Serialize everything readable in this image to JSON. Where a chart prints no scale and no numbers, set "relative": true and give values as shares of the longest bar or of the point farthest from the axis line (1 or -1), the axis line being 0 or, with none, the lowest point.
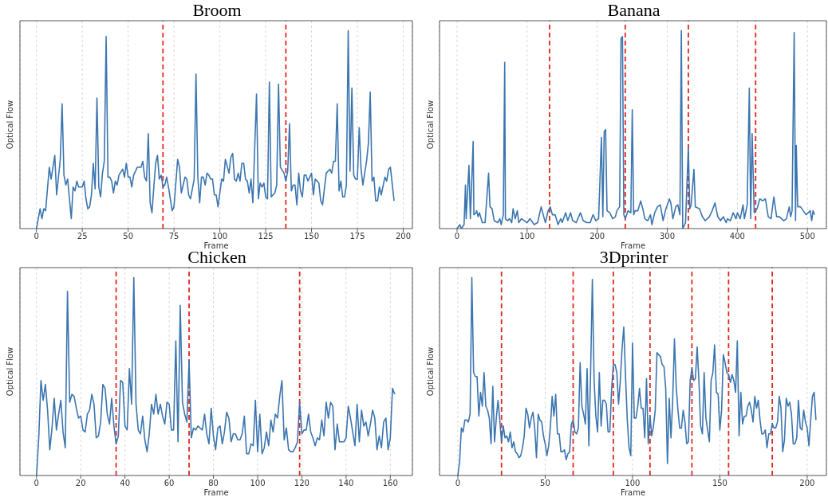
{
  "chart_data": [
    {
      "type": "line",
      "title": "Broom",
      "xlabel": "Frame",
      "ylabel": "Optical Flow",
      "relative": true,
      "xlim": [
        -9,
        205
      ],
      "xticks": [
        0,
        25,
        50,
        75,
        100,
        125,
        150,
        175,
        200
      ],
      "grid": "x",
      "marker": "none",
      "line_style": "solid",
      "ref_lines": [
        {
          "axis": "x",
          "value": 69,
          "color": "#e5261f",
          "line_style": "dashed"
        },
        {
          "axis": "x",
          "value": 136,
          "color": "#e5261f",
          "line_style": "dashed"
        }
      ],
      "series": [
        {
          "color": "#3b75af",
          "x": [
            0,
            2,
            3,
            4,
            5,
            7,
            8,
            10,
            11,
            13,
            14,
            15,
            16,
            17,
            19,
            20,
            21,
            22,
            23,
            25,
            26,
            27,
            28,
            29,
            30,
            31,
            32,
            33,
            34,
            35,
            36,
            37,
            38,
            39,
            40,
            41,
            42,
            43,
            44,
            45,
            47,
            48,
            49,
            50,
            51,
            52,
            53,
            55,
            57,
            58,
            59,
            60,
            61,
            62,
            63,
            64,
            65,
            66,
            67,
            68,
            69,
            70,
            71,
            72,
            74,
            75,
            77,
            78,
            79,
            81,
            82,
            83,
            84,
            86,
            87,
            88,
            89,
            90,
            91,
            92,
            93,
            94,
            95,
            96,
            97,
            98,
            99,
            101,
            102,
            103,
            105,
            106,
            107,
            108,
            109,
            110,
            111,
            112,
            113,
            114,
            115,
            116,
            117,
            118,
            120,
            121,
            122,
            123,
            124,
            125,
            126,
            127,
            128,
            129,
            130,
            131,
            132,
            133,
            135,
            136,
            137,
            138,
            139,
            140,
            141,
            142,
            143,
            144,
            145,
            146,
            147,
            148,
            150,
            151,
            152,
            154,
            155,
            156,
            158,
            160,
            161,
            162,
            163,
            164,
            165,
            166,
            167,
            168,
            169,
            170,
            171,
            172,
            173,
            174,
            175,
            176,
            177,
            178,
            180,
            181,
            182,
            183,
            184,
            185,
            186,
            187,
            188,
            190,
            191,
            192,
            193,
            195
          ],
          "values": [
            0,
            0.1,
            0.05,
            0.1,
            0.09,
            0.31,
            0.25,
            0.37,
            0.17,
            0.35,
            0.63,
            0.27,
            0.22,
            0.25,
            0.05,
            0.21,
            0.19,
            0.24,
            0.21,
            0.21,
            0.24,
            0.15,
            0.1,
            0.11,
            0.17,
            0.33,
            0.2,
            0.66,
            0.21,
            0.16,
            0.28,
            0.34,
            0.97,
            0.26,
            0.26,
            0.24,
            0.18,
            0.24,
            0.22,
            0.27,
            0.3,
            0.26,
            0.33,
            0.26,
            0.26,
            0.21,
            0.27,
            0.31,
            0.31,
            0.34,
            0.26,
            0.24,
            0.48,
            0.13,
            0.08,
            0.21,
            0.33,
            0.37,
            0.25,
            0.27,
            0.21,
            0.22,
            0.26,
            0.21,
            0.09,
            0.11,
            0.35,
            0.31,
            0.18,
            0.26,
            0.25,
            0.17,
            0.15,
            0.25,
            0.78,
            0.26,
            0.13,
            0.26,
            0.26,
            0.22,
            0.28,
            0.27,
            0.25,
            0.25,
            0.17,
            0.17,
            0.11,
            0.25,
            0.24,
            0.35,
            0.28,
            0.36,
            0.38,
            0.25,
            0.24,
            0.28,
            0.24,
            0.33,
            0.33,
            0.25,
            0.24,
            0.18,
            0.25,
            0.13,
            0.68,
            0.15,
            0.23,
            0.21,
            0.23,
            0.16,
            0.15,
            0.74,
            0.16,
            0.17,
            0.18,
            0.22,
            0.73,
            0.31,
            0.28,
            0.24,
            0.29,
            0.53,
            0.19,
            0.22,
            0.22,
            0.12,
            0.28,
            0.19,
            0.16,
            0.27,
            0.27,
            0.24,
            0.28,
            0.17,
            0.25,
            0.23,
            0.14,
            0.12,
            0.28,
            0.3,
            0.28,
            0.34,
            0.34,
            0.63,
            0.19,
            0.24,
            0.16,
            0.16,
            0.22,
            1,
            0.29,
            0.71,
            0.27,
            0.25,
            0.25,
            0.51,
            0.3,
            0.22,
            0.34,
            0.43,
            0.69,
            0.24,
            0.26,
            0.14,
            0.14,
            0.21,
            0.17,
            0.26,
            0.24,
            0.3,
            0.31,
            0.14
          ]
        }
      ]
    },
    {
      "type": "line",
      "title": "Banana",
      "xlabel": "Frame",
      "ylabel": "Optical Flow",
      "relative": true,
      "xlim": [
        -25,
        527
      ],
      "xticks": [
        0,
        100,
        200,
        300,
        400,
        500
      ],
      "grid": "x",
      "marker": "none",
      "line_style": "solid",
      "ref_lines": [
        {
          "axis": "x",
          "value": 132,
          "color": "#e5261f",
          "line_style": "dashed"
        },
        {
          "axis": "x",
          "value": 240,
          "color": "#e5261f",
          "line_style": "dashed"
        },
        {
          "axis": "x",
          "value": 330,
          "color": "#e5261f",
          "line_style": "dashed"
        },
        {
          "axis": "x",
          "value": 426,
          "color": "#e5261f",
          "line_style": "dashed"
        }
      ],
      "series": [
        {
          "color": "#3b75af",
          "x": [
            0,
            4,
            6,
            10,
            12,
            13,
            17,
            19,
            23,
            24,
            27,
            28,
            30,
            32,
            36,
            40,
            45,
            47,
            50,
            53,
            58,
            61,
            63,
            66,
            68,
            69,
            72,
            75,
            78,
            80,
            83,
            86,
            88,
            92,
            96,
            100,
            104,
            110,
            115,
            120,
            123,
            126,
            128,
            130,
            133,
            136,
            140,
            144,
            148,
            150,
            155,
            158,
            162,
            165,
            170,
            176,
            180,
            185,
            190,
            194,
            198,
            202,
            206,
            208,
            210,
            212,
            214,
            218,
            222,
            226,
            228,
            232,
            234,
            236,
            238,
            240,
            244,
            248,
            250,
            252,
            254,
            258,
            262,
            265,
            268,
            272,
            276,
            278,
            282,
            286,
            290,
            294,
            298,
            303,
            305,
            308,
            312,
            315,
            318,
            320,
            322,
            326,
            328,
            330,
            332,
            334,
            338,
            340,
            346,
            350,
            354,
            360,
            364,
            368,
            372,
            376,
            380,
            384,
            386,
            390,
            394,
            398,
            400,
            404,
            408,
            410,
            414,
            417,
            419,
            421,
            424,
            428,
            432,
            436,
            440,
            444,
            448,
            452,
            456,
            460,
            466,
            470,
            474,
            476,
            478,
            481,
            483,
            484,
            486,
            490,
            494,
            498,
            504,
            506,
            508,
            510
          ],
          "values": [
            0,
            0.02,
            0,
            0.02,
            0.22,
            0.05,
            0.32,
            0.05,
            0.44,
            0.07,
            0.08,
            0.09,
            0.06,
            0.08,
            0.03,
            0.03,
            0.28,
            0.11,
            0.1,
            0.04,
            0.03,
            0.05,
            0.02,
            0.07,
            0.84,
            0.05,
            0.04,
            0.05,
            0.03,
            0.1,
            0.05,
            0.09,
            0.03,
            0.05,
            0.04,
            0.03,
            0.05,
            0.02,
            0.03,
            0.11,
            0.07,
            0.03,
            0.06,
            0.09,
            0.11,
            0.07,
            0.07,
            0.02,
            0.05,
            0.03,
            0.08,
            0.04,
            0.08,
            0.04,
            0.03,
            0.08,
            0.04,
            0.03,
            0.03,
            0.07,
            0.04,
            0.05,
            0.46,
            0.06,
            0.49,
            0.5,
            0.09,
            0.08,
            0.05,
            0.06,
            0.09,
            0.11,
            0.96,
            0.97,
            0.07,
            0.05,
            0.09,
            0.08,
            0.6,
            0.07,
            0.09,
            0.09,
            0.14,
            0.1,
            0.05,
            0.04,
            0.07,
            0.02,
            0.08,
            0.11,
            0.12,
            0.04,
            0.1,
            0.15,
            0.13,
            0.05,
            0.11,
            0.12,
            0.07,
            1,
            0,
            0.03,
            0.22,
            0.41,
            0.1,
            0.12,
            0.3,
            0.11,
            0.1,
            0.06,
            0.04,
            0.06,
            0.09,
            0.13,
            0.06,
            0.04,
            0.06,
            0.03,
            0.05,
            0.04,
            0.08,
            0.05,
            0.08,
            0.05,
            0.12,
            0.05,
            0.12,
            0.71,
            0.05,
            0.48,
            0.08,
            0.1,
            0.15,
            0.14,
            0.15,
            0.06,
            0.05,
            0.16,
            0.06,
            0.06,
            0.04,
            0.05,
            0.11,
            0.06,
            0.09,
            0.99,
            0.04,
            0.42,
            0.11,
            0.11,
            0.09,
            0.07,
            0.09,
            0.04,
            0.09,
            0.07
          ]
        }
      ]
    },
    {
      "type": "line",
      "title": "Chicken",
      "xlabel": "Frame",
      "ylabel": "Optical Flow",
      "relative": true,
      "xlim": [
        -7.5,
        170
      ],
      "xticks": [
        0,
        20,
        40,
        60,
        80,
        100,
        120,
        140,
        160
      ],
      "grid": "x",
      "marker": "none",
      "line_style": "solid",
      "ref_lines": [
        {
          "axis": "x",
          "value": 36,
          "color": "#e5261f",
          "line_style": "dashed"
        },
        {
          "axis": "x",
          "value": 69,
          "color": "#e5261f",
          "line_style": "dashed"
        },
        {
          "axis": "x",
          "value": 119,
          "color": "#e5261f",
          "line_style": "dashed"
        }
      ],
      "series": [
        {
          "color": "#3b75af",
          "x": [
            0,
            1,
            2,
            3,
            4,
            5,
            6,
            7,
            8,
            9,
            10,
            11,
            12,
            13,
            14,
            15,
            16,
            17,
            18,
            19,
            20,
            21,
            22,
            23,
            24,
            25,
            26,
            27,
            28,
            29,
            30,
            31,
            32,
            33,
            34,
            35,
            36,
            37,
            38,
            39,
            40,
            41,
            42,
            43,
            44,
            45,
            46,
            47,
            48,
            49,
            50,
            51,
            52,
            53,
            54,
            55,
            56,
            57,
            58,
            59,
            60,
            61,
            62,
            63,
            64,
            65,
            66,
            67,
            68,
            69,
            70,
            71,
            72,
            73,
            74,
            75,
            76,
            77,
            78,
            79,
            80,
            81,
            82,
            83,
            84,
            85,
            86,
            87,
            88,
            89,
            90,
            91,
            92,
            93,
            94,
            95,
            96,
            97,
            98,
            99,
            100,
            101,
            102,
            103,
            104,
            105,
            106,
            107,
            108,
            109,
            110,
            111,
            112,
            113,
            114,
            115,
            116,
            117,
            118,
            119,
            120,
            121,
            122,
            123,
            124,
            125,
            126,
            127,
            128,
            129,
            130,
            131,
            132,
            133,
            134,
            135,
            136,
            137,
            138,
            139,
            140,
            141,
            142,
            143,
            144,
            145,
            146,
            147,
            148,
            149,
            150,
            151,
            152,
            153,
            154,
            155,
            156,
            157,
            158,
            159,
            160,
            161,
            162
          ],
          "values": [
            0,
            0.19,
            0.48,
            0.38,
            0.46,
            0.33,
            0.13,
            0.24,
            0.39,
            0.23,
            0.31,
            0.38,
            0.22,
            0.14,
            0.93,
            0.37,
            0.41,
            0.4,
            0.34,
            0.29,
            0.3,
            0.23,
            0.22,
            0.31,
            0.33,
            0.41,
            0.36,
            0.19,
            0.2,
            0.27,
            0.46,
            0.44,
            0.31,
            0.26,
            0.39,
            0.25,
            0.16,
            0.2,
            0.48,
            0.47,
            0.25,
            0.23,
            0.54,
            0.36,
            1,
            0.36,
            0.23,
            0.21,
            0.3,
            0.18,
            0.12,
            0.21,
            0.36,
            0.31,
            0.41,
            0.31,
            0.36,
            0.3,
            0.26,
            0.37,
            0.36,
            0.23,
            0.23,
            0.68,
            0.17,
            0.86,
            0.37,
            0.31,
            0.27,
            0.58,
            0.19,
            0.24,
            0.23,
            0.25,
            0.24,
            0.23,
            0.31,
            0.21,
            0.16,
            0.34,
            0.2,
            0.13,
            0.24,
            0.25,
            0.16,
            0.22,
            0.32,
            0.29,
            0.17,
            0.21,
            0.21,
            0.18,
            0.18,
            0.21,
            0.3,
            0.11,
            0.11,
            0.16,
            0.15,
            0.38,
            0.12,
            0.31,
            0.11,
            0.14,
            0.22,
            0.15,
            0.28,
            0.22,
            0.31,
            0.29,
            0.4,
            0.48,
            0.18,
            0.24,
            0.13,
            0.12,
            0.12,
            0.14,
            0.17,
            0.37,
            0.21,
            0.23,
            0.23,
            0.31,
            0.22,
            0.19,
            0.15,
            0.19,
            0.18,
            0.28,
            0.2,
            0.37,
            0.29,
            0.37,
            0.35,
            0.13,
            0.26,
            0.17,
            0.17,
            0.17,
            0.19,
            0.35,
            0.29,
            0.22,
            0.15,
            0.36,
            0.17,
            0.33,
            0.25,
            0.27,
            0.2,
            0.26,
            0.33,
            0.29,
            0.13,
            0.2,
            0.14,
            0.27,
            0.29,
            0.13,
            0.19,
            0.44,
            0.41
          ]
        }
      ]
    },
    {
      "type": "line",
      "title": "3Dprinter",
      "xlabel": "Frame",
      "ylabel": "Optical Flow",
      "relative": true,
      "xlim": [
        -10.5,
        211
      ],
      "xticks": [
        0,
        50,
        100,
        150,
        200
      ],
      "grid": "x",
      "marker": "none",
      "line_style": "solid",
      "ref_lines": [
        {
          "axis": "x",
          "value": 25,
          "color": "#e5261f",
          "line_style": "dashed"
        },
        {
          "axis": "x",
          "value": 66,
          "color": "#e5261f",
          "line_style": "dashed"
        },
        {
          "axis": "x",
          "value": 89,
          "color": "#e5261f",
          "line_style": "dashed"
        },
        {
          "axis": "x",
          "value": 110,
          "color": "#e5261f",
          "line_style": "dashed"
        },
        {
          "axis": "x",
          "value": 134,
          "color": "#e5261f",
          "line_style": "dashed"
        },
        {
          "axis": "x",
          "value": 155,
          "color": "#e5261f",
          "line_style": "dashed"
        },
        {
          "axis": "x",
          "value": 180,
          "color": "#e5261f",
          "line_style": "dashed"
        }
      ],
      "series": [
        {
          "color": "#3b75af",
          "x": [
            0,
            1,
            2,
            3,
            4,
            5,
            6,
            7,
            8,
            9,
            10,
            11,
            12,
            13,
            14,
            15,
            16,
            17,
            18,
            19,
            20,
            21,
            22,
            23,
            24,
            25,
            26,
            27,
            28,
            29,
            30,
            31,
            32,
            33,
            34,
            35,
            36,
            37,
            38,
            39,
            40,
            41,
            42,
            43,
            44,
            45,
            46,
            47,
            48,
            49,
            50,
            51,
            52,
            53,
            54,
            55,
            56,
            57,
            58,
            59,
            60,
            61,
            62,
            63,
            64,
            65,
            66,
            67,
            68,
            69,
            70,
            71,
            72,
            73,
            74,
            75,
            76,
            77,
            78,
            79,
            80,
            81,
            82,
            83,
            84,
            85,
            86,
            87,
            88,
            89,
            90,
            91,
            92,
            93,
            94,
            95,
            96,
            97,
            98,
            99,
            100,
            101,
            102,
            103,
            104,
            105,
            106,
            107,
            108,
            109,
            110,
            111,
            112,
            113,
            114,
            115,
            116,
            117,
            118,
            119,
            120,
            121,
            122,
            123,
            124,
            125,
            126,
            127,
            128,
            129,
            130,
            131,
            132,
            133,
            134,
            135,
            136,
            137,
            138,
            139,
            140,
            141,
            142,
            143,
            144,
            145,
            146,
            147,
            148,
            149,
            150,
            151,
            152,
            153,
            154,
            155,
            156,
            157,
            158,
            159,
            160,
            161,
            162,
            163,
            164,
            165,
            166,
            167,
            168,
            169,
            170,
            171,
            172,
            173,
            174,
            175,
            176,
            177,
            178,
            179,
            180,
            181,
            182,
            183,
            184,
            185,
            186,
            187,
            188,
            189,
            190,
            191,
            192,
            193,
            194,
            195,
            196,
            197,
            198,
            199,
            200,
            201,
            202,
            203,
            204,
            205
          ],
          "values": [
            0,
            0.07,
            0.24,
            0.22,
            0.28,
            0.28,
            0.27,
            0.31,
            1,
            0.52,
            0.5,
            0.5,
            0.3,
            0.42,
            0.35,
            0.52,
            0.35,
            0.33,
            0.29,
            0.16,
            0.45,
            0.17,
            0.29,
            0.38,
            0.28,
            0.17,
            0.25,
            0.19,
            0.2,
            0.17,
            0.22,
            0.14,
            0.17,
            0.12,
            0.11,
            0.09,
            0.1,
            0.14,
            0.2,
            0.34,
            0.31,
            0.24,
            0.29,
            0.32,
            0.24,
            0.09,
            0.31,
            0.28,
            0.27,
            0.2,
            0.16,
            0.1,
            0.15,
            0.25,
            0.4,
            0.3,
            0.41,
            0.21,
            0.21,
            0.12,
            0.12,
            0.13,
            0.08,
            0.11,
            0.12,
            0.26,
            0.28,
            0.22,
            0.21,
            0.24,
            0.57,
            0.35,
            0.31,
            0.26,
            0.54,
            0.15,
            0.52,
            0.99,
            0.48,
            0.3,
            0.22,
            0.52,
            0.25,
            0.38,
            0.38,
            0.36,
            0.22,
            0.22,
            0.43,
            0.56,
            0.56,
            0.52,
            0.36,
            0.48,
            0.64,
            0.75,
            0.5,
            0.28,
            0.14,
            0.1,
            0.67,
            0.29,
            0.29,
            0.35,
            0.44,
            0.34,
            0.34,
            0.19,
            0.49,
            0.16,
            0.3,
            0.2,
            0.25,
            0.33,
            0.62,
            0.61,
            0.6,
            0.56,
            0.55,
            0.44,
            0.06,
            0.39,
            0.19,
            0.38,
            0.69,
            0.45,
            0.33,
            0.24,
            0.24,
            0.33,
            0.27,
            0.16,
            0.17,
            0.48,
            0.54,
            0.48,
            0.49,
            0.65,
            0.48,
            0.25,
            0.21,
            0.52,
            0.29,
            0.23,
            0.17,
            0.48,
            0.52,
            0.66,
            0.42,
            0.41,
            0.23,
            0.33,
            0.61,
            0.57,
            0.52,
            0.51,
            0.47,
            0.51,
            0.48,
            0.42,
            0.68,
            0.2,
            0.42,
            0.26,
            0.3,
            0.3,
            0.35,
            0.37,
            0.33,
            0.27,
            0.4,
            0.34,
            0.38,
            0.28,
            0.21,
            0.21,
            0.23,
            0.14,
            0.21,
            0.21,
            0.26,
            0.24,
            0.24,
            0.27,
            0.4,
            0.34,
            0.12,
            0.18,
            0.39,
            0.35,
            0.37,
            0.31,
            0.16,
            0.16,
            0.19,
            0.38,
            0.24,
            0.23,
            0.33,
            0.27,
            0.24,
            0.15,
            0.28,
            0.4,
            0.42,
            0.28
          ]
        }
      ]
    }
  ]
}
